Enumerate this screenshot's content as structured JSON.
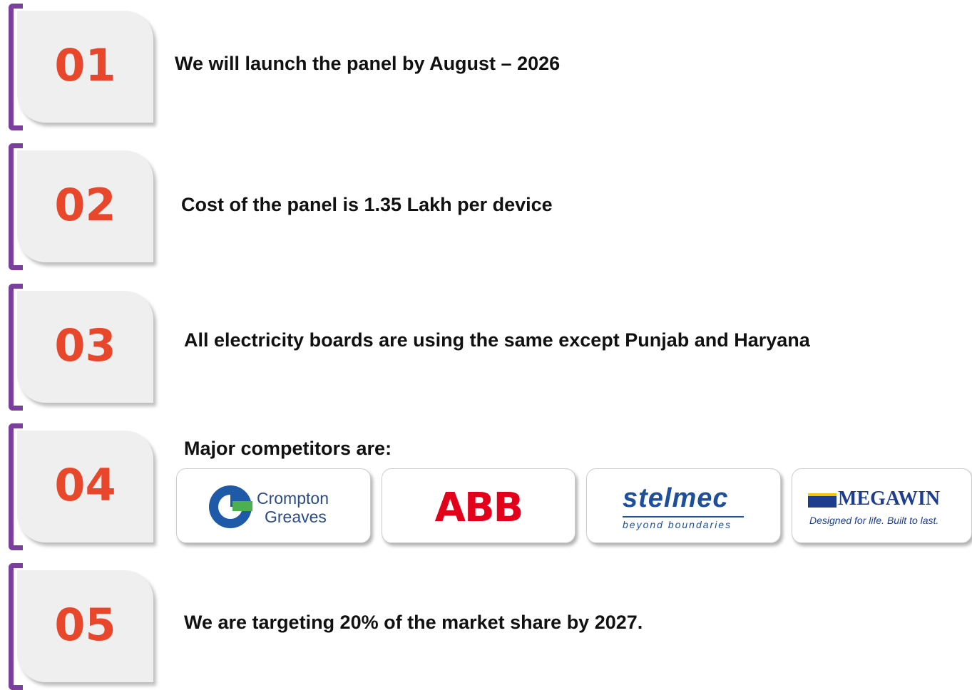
{
  "items": [
    {
      "number": "01",
      "text": "We will launch the panel by August – 2026"
    },
    {
      "number": "02",
      "text": "Cost of the panel is 1.35 Lakh per device"
    },
    {
      "number": "03",
      "text": "All electricity boards are using the same except Punjab and Haryana"
    },
    {
      "number": "04",
      "text": "Major competitors are:",
      "competitors": [
        {
          "lines": [
            "Crompton",
            "Greaves"
          ]
        },
        {
          "lines": [
            "ABB"
          ]
        },
        {
          "lines": [
            "stelmec",
            "beyond boundaries"
          ]
        },
        {
          "lines": [
            "MEGAWIN",
            "Designed for life. Built to last."
          ]
        }
      ]
    },
    {
      "number": "05",
      "text": "We are targeting 20% of the market share by 2027."
    }
  ]
}
